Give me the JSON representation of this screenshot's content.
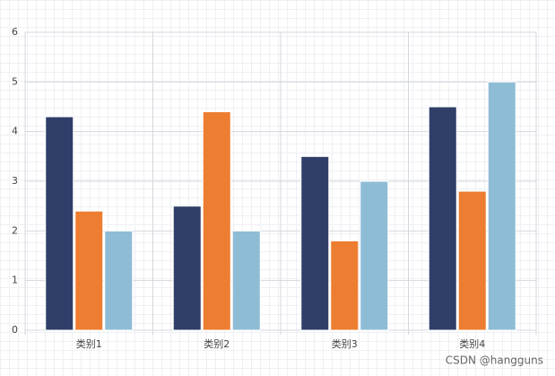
{
  "chart_data": {
    "type": "bar",
    "categories": [
      "类别1",
      "类别2",
      "类别3",
      "类别4"
    ],
    "series": [
      {
        "color": "#2f3f69",
        "values": [
          4.3,
          2.5,
          3.5,
          4.5
        ]
      },
      {
        "color": "#ed7d31",
        "values": [
          2.4,
          4.4,
          1.8,
          2.8
        ]
      },
      {
        "color": "#8fbcd5",
        "values": [
          2.0,
          2.0,
          3.0,
          5.0
        ]
      }
    ],
    "ylim": [
      0,
      6
    ],
    "yticks": [
      0,
      1,
      2,
      3,
      4,
      5,
      6
    ],
    "grid": true,
    "watermark": "CSDN @hangguns"
  }
}
